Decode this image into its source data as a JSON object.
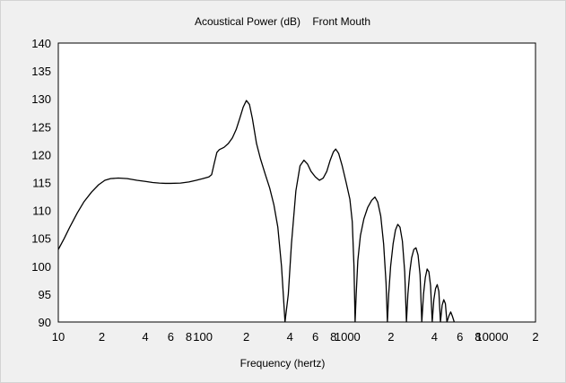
{
  "chart_data": {
    "type": "line",
    "title": "Acoustical Power (dB)    Front Mouth",
    "xlabel": "Frequency (hertz)",
    "ylabel": "",
    "xscale": "log",
    "xlim": [
      10,
      20000
    ],
    "ylim": [
      90,
      140
    ],
    "yticks": [
      140,
      135,
      130,
      125,
      120,
      115,
      110,
      105,
      100,
      95,
      90
    ],
    "xticks": [
      {
        "value": 10,
        "label": "10"
      },
      {
        "value": 20,
        "label": "2"
      },
      {
        "value": 40,
        "label": "4"
      },
      {
        "value": 60,
        "label": "6"
      },
      {
        "value": 80,
        "label": "8"
      },
      {
        "value": 100,
        "label": "100"
      },
      {
        "value": 200,
        "label": "2"
      },
      {
        "value": 400,
        "label": "4"
      },
      {
        "value": 600,
        "label": "6"
      },
      {
        "value": 800,
        "label": "8"
      },
      {
        "value": 1000,
        "label": "1000"
      },
      {
        "value": 2000,
        "label": "2"
      },
      {
        "value": 4000,
        "label": "4"
      },
      {
        "value": 6000,
        "label": "6"
      },
      {
        "value": 8000,
        "label": "8"
      },
      {
        "value": 10000,
        "label": "10000"
      },
      {
        "value": 20000,
        "label": "2"
      }
    ],
    "grid": true,
    "series": [
      {
        "color": "#000000",
        "points": [
          [
            10,
            103
          ],
          [
            11,
            105
          ],
          [
            12,
            107
          ],
          [
            13.5,
            109.5
          ],
          [
            15,
            111.5
          ],
          [
            17,
            113.3
          ],
          [
            19,
            114.6
          ],
          [
            21,
            115.4
          ],
          [
            23,
            115.7
          ],
          [
            26,
            115.8
          ],
          [
            30,
            115.7
          ],
          [
            35,
            115.4
          ],
          [
            40,
            115.2
          ],
          [
            45,
            115.0
          ],
          [
            50,
            114.9
          ],
          [
            55,
            114.85
          ],
          [
            60,
            114.85
          ],
          [
            70,
            114.9
          ],
          [
            80,
            115.1
          ],
          [
            90,
            115.4
          ],
          [
            100,
            115.7
          ],
          [
            110,
            116.0
          ],
          [
            115,
            116.4
          ],
          [
            120,
            118.5
          ],
          [
            125,
            120.4
          ],
          [
            130,
            120.9
          ],
          [
            140,
            121.3
          ],
          [
            150,
            122.0
          ],
          [
            160,
            123.0
          ],
          [
            170,
            124.5
          ],
          [
            180,
            126.5
          ],
          [
            190,
            128.5
          ],
          [
            200,
            129.7
          ],
          [
            210,
            129.0
          ],
          [
            220,
            126.5
          ],
          [
            235,
            122.0
          ],
          [
            250,
            119.3
          ],
          [
            270,
            116.5
          ],
          [
            290,
            114.0
          ],
          [
            310,
            111.0
          ],
          [
            330,
            107.0
          ],
          [
            350,
            100.0
          ],
          [
            360,
            95.0
          ],
          [
            370,
            90.0
          ],
          [
            390,
            95.0
          ],
          [
            410,
            104.0
          ],
          [
            440,
            113.5
          ],
          [
            470,
            118.0
          ],
          [
            500,
            119.0
          ],
          [
            530,
            118.3
          ],
          [
            560,
            117.0
          ],
          [
            600,
            116.0
          ],
          [
            640,
            115.4
          ],
          [
            680,
            115.8
          ],
          [
            720,
            117.0
          ],
          [
            760,
            119.0
          ],
          [
            800,
            120.5
          ],
          [
            830,
            121.0
          ],
          [
            870,
            120.2
          ],
          [
            920,
            118.0
          ],
          [
            980,
            115.0
          ],
          [
            1040,
            112.0
          ],
          [
            1080,
            108.0
          ],
          [
            1110,
            100.0
          ],
          [
            1130,
            90.0
          ],
          [
            1150,
            95.0
          ],
          [
            1180,
            101.0
          ],
          [
            1230,
            105.5
          ],
          [
            1300,
            108.5
          ],
          [
            1380,
            110.5
          ],
          [
            1470,
            111.8
          ],
          [
            1550,
            112.4
          ],
          [
            1620,
            111.5
          ],
          [
            1700,
            109.0
          ],
          [
            1780,
            104.0
          ],
          [
            1850,
            97.0
          ],
          [
            1890,
            90.0
          ],
          [
            1930,
            95.0
          ],
          [
            1990,
            100.0
          ],
          [
            2070,
            104.0
          ],
          [
            2150,
            106.5
          ],
          [
            2230,
            107.5
          ],
          [
            2310,
            107.0
          ],
          [
            2400,
            104.5
          ],
          [
            2490,
            99.0
          ],
          [
            2560,
            90.0
          ],
          [
            2620,
            95.0
          ],
          [
            2700,
            99.0
          ],
          [
            2780,
            101.5
          ],
          [
            2880,
            103.0
          ],
          [
            2980,
            103.3
          ],
          [
            3080,
            102.0
          ],
          [
            3180,
            98.5
          ],
          [
            3270,
            90.0
          ],
          [
            3360,
            95.0
          ],
          [
            3460,
            98.0
          ],
          [
            3560,
            99.5
          ],
          [
            3660,
            99.0
          ],
          [
            3760,
            96.5
          ],
          [
            3860,
            90.0
          ],
          [
            3960,
            94.0
          ],
          [
            4070,
            96.0
          ],
          [
            4180,
            96.7
          ],
          [
            4290,
            95.5
          ],
          [
            4400,
            90.0
          ],
          [
            4520,
            93.0
          ],
          [
            4640,
            94.0
          ],
          [
            4760,
            93.3
          ],
          [
            4880,
            90.0
          ],
          [
            5020,
            91.0
          ],
          [
            5180,
            91.8
          ],
          [
            5330,
            91.0
          ],
          [
            5480,
            90.0
          ]
        ]
      }
    ]
  }
}
